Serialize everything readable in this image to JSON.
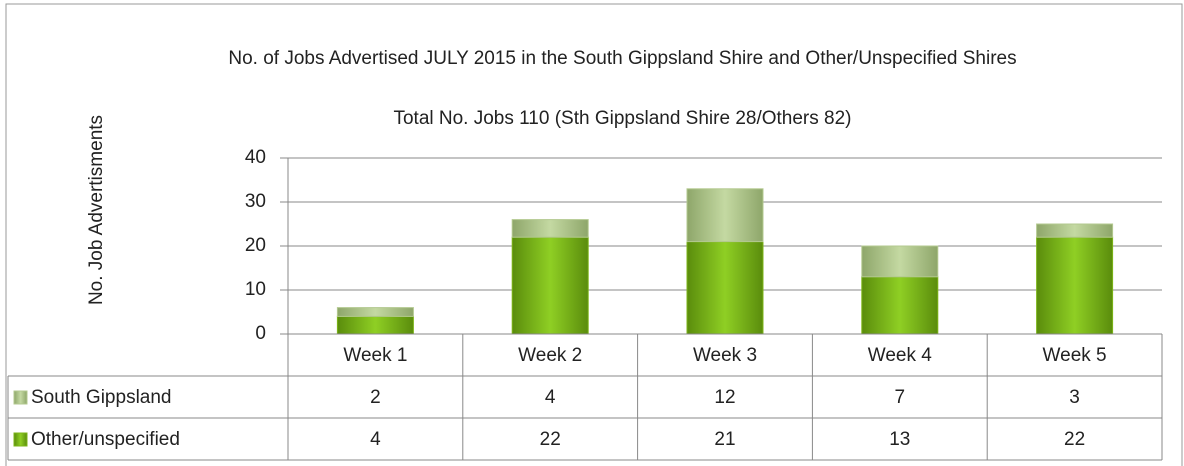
{
  "chart_data": {
    "type": "stacked_bar",
    "title": "No. of Jobs Advertised JULY 2015 in the South Gippsland Shire and Other/Unspecified Shires",
    "subtitle": "Total No. Jobs 110 (Sth Gippsland Shire 28/Others 82)",
    "y_label": "No. Job Advertisments",
    "categories": [
      "Week 1",
      "Week 2",
      "Week 3",
      "Week 4",
      "Week 5"
    ],
    "series": [
      {
        "name": "Other/unspecified",
        "color": "#7cb518",
        "values": [
          4,
          22,
          21,
          13,
          22
        ]
      },
      {
        "name": "South Gippsland",
        "color": "#b3c98f",
        "values": [
          2,
          4,
          12,
          7,
          3
        ]
      }
    ],
    "ylim": [
      0,
      40
    ],
    "yticks": [
      0,
      10,
      20,
      30,
      40
    ],
    "grid": true
  }
}
